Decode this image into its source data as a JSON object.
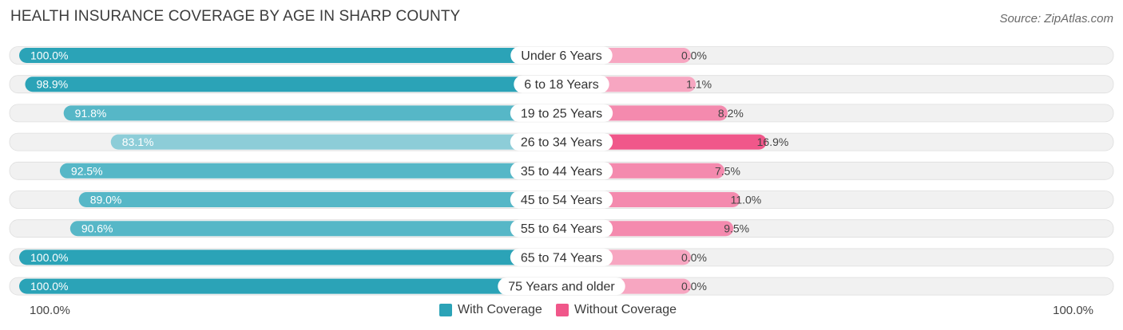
{
  "title": "HEALTH INSURANCE COVERAGE BY AGE IN SHARP COUNTY",
  "source": "Source: ZipAtlas.com",
  "colors": {
    "with_coverage": "#2ba3b7",
    "with_coverage_light": "#8dcdd8",
    "without_coverage": "#f0578a",
    "without_coverage_light": "#f7a6c1",
    "row_background": "#f1f1f1"
  },
  "legend": {
    "with_label": "With Coverage",
    "without_label": "Without Coverage"
  },
  "axis": {
    "left_label": "100.0%",
    "right_label": "100.0%"
  },
  "chart_data": {
    "type": "bar",
    "orientation": "horizontal-diverging",
    "title": "HEALTH INSURANCE COVERAGE BY AGE IN SHARP COUNTY",
    "categories": [
      "Under 6 Years",
      "6 to 18 Years",
      "19 to 25 Years",
      "26 to 34 Years",
      "35 to 44 Years",
      "45 to 54 Years",
      "55 to 64 Years",
      "65 to 74 Years",
      "75 Years and older"
    ],
    "series": [
      {
        "name": "With Coverage",
        "values": [
          100.0,
          98.9,
          91.8,
          83.1,
          92.5,
          89.0,
          90.6,
          100.0,
          100.0
        ],
        "labels": [
          "100.0%",
          "98.9%",
          "91.8%",
          "83.1%",
          "92.5%",
          "89.0%",
          "90.6%",
          "100.0%",
          "100.0%"
        ]
      },
      {
        "name": "Without Coverage",
        "values": [
          0.0,
          1.1,
          8.2,
          16.9,
          7.5,
          11.0,
          9.5,
          0.0,
          0.0
        ],
        "labels": [
          "0.0%",
          "1.1%",
          "8.2%",
          "16.9%",
          "7.5%",
          "11.0%",
          "9.5%",
          "0.0%",
          "0.0%"
        ]
      }
    ],
    "xlim": [
      0,
      100
    ],
    "legend_position": "bottom-center"
  }
}
